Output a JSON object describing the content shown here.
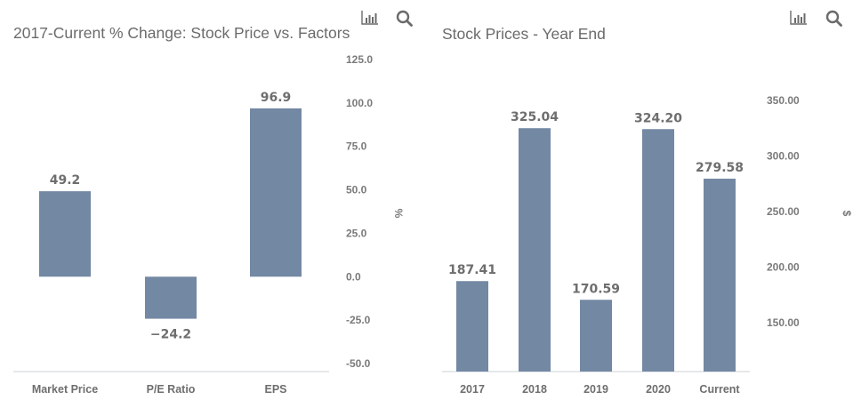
{
  "colors": {
    "bar": "#7388a3",
    "text": "#6e6e6e",
    "axis_line": "#d6d9de"
  },
  "toolbar": {
    "chart_type_icon": "bar-chart-icon",
    "search_icon": "search-icon"
  },
  "chart_data": [
    {
      "type": "bar",
      "title": "2017-Current % Change: Stock Price vs. Factors",
      "xlabel": "",
      "ylabel": "%",
      "categories": [
        "Market Price",
        "P/E Ratio",
        "EPS"
      ],
      "values": [
        49.2,
        -24.2,
        96.9
      ],
      "data_labels": [
        "49.2",
        "−24.2",
        "96.9"
      ],
      "ylim": [
        -50,
        125
      ],
      "yticks": [
        125,
        100,
        75,
        50,
        25,
        0,
        -25,
        -50
      ],
      "ytick_labels": [
        "125.0",
        "100.0",
        "75.0",
        "50.0",
        "25.0",
        "0.0",
        "-25.0",
        "-50.0"
      ],
      "y_axis_side": "right",
      "grid": false
    },
    {
      "type": "bar",
      "title": "Stock Prices - Year End",
      "xlabel": "",
      "ylabel": "$",
      "categories": [
        "2017",
        "2018",
        "2019",
        "2020",
        "Current"
      ],
      "values": [
        187.41,
        325.04,
        170.59,
        324.2,
        279.58
      ],
      "data_labels": [
        "187.41",
        "325.04",
        "170.59",
        "324.20",
        "279.58"
      ],
      "ylim": [
        106,
        350
      ],
      "yticks": [
        350,
        300,
        250,
        200,
        150
      ],
      "ytick_labels": [
        "350.00",
        "300.00",
        "250.00",
        "200.00",
        "150.00"
      ],
      "y_axis_side": "right",
      "grid": false
    }
  ]
}
